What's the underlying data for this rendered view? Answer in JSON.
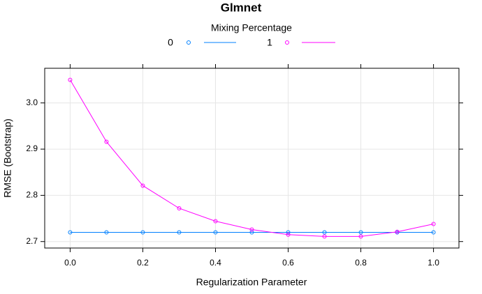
{
  "chart_data": {
    "type": "line",
    "title": "Glmnet",
    "legend_title": "Mixing Percentage",
    "x_label": "Regularization Parameter",
    "y_label": "RMSE (Bootstrap)",
    "x": [
      0,
      0.1,
      0.2,
      0.3,
      0.4,
      0.5,
      0.6,
      0.7,
      0.8,
      0.9,
      1.0
    ],
    "series": [
      {
        "name": "0",
        "color": "#0080ff",
        "values": [
          2.72,
          2.72,
          2.72,
          2.72,
          2.72,
          2.72,
          2.72,
          2.72,
          2.72,
          2.72,
          2.72
        ]
      },
      {
        "name": "1",
        "color": "#ff00ff",
        "values": [
          3.05,
          2.916,
          2.821,
          2.772,
          2.744,
          2.726,
          2.715,
          2.711,
          2.711,
          2.721,
          2.738
        ]
      }
    ],
    "xlim": [
      -0.07,
      1.07
    ],
    "ylim": [
      2.686,
      3.075
    ],
    "xticks": [
      {
        "value": 0,
        "label": "0.0"
      },
      0.2,
      0.4,
      0.6,
      0.8,
      {
        "value": 1,
        "label": "1.0"
      }
    ],
    "yticks": [
      2.7,
      2.8,
      2.9,
      {
        "value": 3,
        "label": "3.0"
      }
    ],
    "grid": true,
    "legend_position": "top"
  }
}
